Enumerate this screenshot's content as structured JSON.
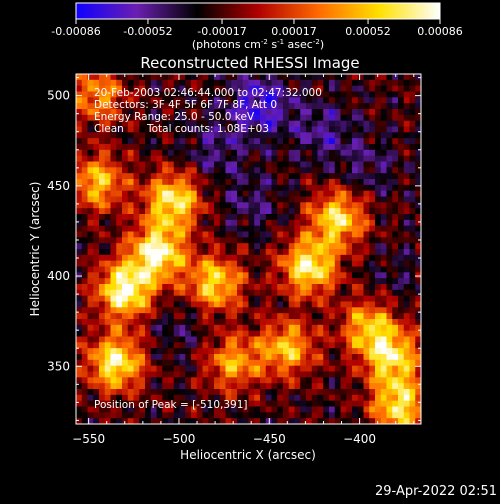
{
  "colorbar": {
    "colors": [
      "#1000ff",
      "#6a1fb0",
      "#000000",
      "#b00000",
      "#ff6a00",
      "#ffe000",
      "#ffffff"
    ],
    "tick_labels": [
      "-0.00086",
      "-0.00052",
      "-0.00017",
      "0.00017",
      "0.00052",
      "0.00086"
    ],
    "tick_values": [
      -0.00086,
      -0.00052,
      -0.00017,
      0.00017,
      0.00052,
      0.00086
    ],
    "range": [
      -0.00086,
      0.00086
    ],
    "unit_label_parts": [
      "(photons cm",
      "-2",
      " s",
      "-1",
      " asec",
      "-2",
      ")"
    ]
  },
  "chart_data": {
    "type": "heatmap",
    "title": "Reconstructed RHESSI Image",
    "xlabel": "Heliocentric X (arcsec)",
    "ylabel": "Heliocentric Y (arcsec)",
    "xlim": [
      -557,
      -366
    ],
    "ylim": [
      318,
      512
    ],
    "x_ticks": [
      -550,
      -500,
      -450,
      -400
    ],
    "y_ticks": [
      350,
      400,
      450,
      500
    ],
    "x_tick_labels": [
      "−550",
      "−500",
      "−450",
      "−400"
    ],
    "y_tick_labels": [
      "350",
      "400",
      "450",
      "500"
    ],
    "peak": [
      -510,
      391
    ],
    "hotspots": [
      {
        "x": -530,
        "y": 392,
        "level": 0.95
      },
      {
        "x": -535,
        "y": 352,
        "level": 0.85
      },
      {
        "x": -512,
        "y": 413,
        "level": 0.9
      },
      {
        "x": -503,
        "y": 442,
        "level": 0.8
      },
      {
        "x": -480,
        "y": 396,
        "level": 0.7
      },
      {
        "x": -428,
        "y": 405,
        "level": 0.85
      },
      {
        "x": -412,
        "y": 432,
        "level": 0.75
      },
      {
        "x": -395,
        "y": 372,
        "level": 0.55
      },
      {
        "x": -382,
        "y": 355,
        "level": 0.7
      },
      {
        "x": -545,
        "y": 452,
        "level": 0.6
      },
      {
        "x": -470,
        "y": 352,
        "level": 0.5
      },
      {
        "x": -440,
        "y": 360,
        "level": 0.6
      },
      {
        "x": -378,
        "y": 328,
        "level": 0.75
      },
      {
        "x": -545,
        "y": 500,
        "level": 0.45
      }
    ],
    "coldspots": [
      {
        "x": -455,
        "y": 495,
        "level": -0.85
      },
      {
        "x": -420,
        "y": 480,
        "level": -0.6
      },
      {
        "x": -480,
        "y": 470,
        "level": -0.55
      },
      {
        "x": -395,
        "y": 460,
        "level": -0.5
      },
      {
        "x": -460,
        "y": 440,
        "level": -0.5
      },
      {
        "x": -500,
        "y": 370,
        "level": -0.45
      },
      {
        "x": -380,
        "y": 400,
        "level": -0.4
      }
    ]
  },
  "info": {
    "time_range": "20-Feb-2003 02:46:44.000 to 02:47:32.000",
    "detectors": "Detectors: 3F 4F 5F 6F 7F 8F, Att 0",
    "energy_range": "Energy Range: 25.0 - 50.0 keV",
    "method": "Clean",
    "total_counts": "Total counts: 1.08E+03",
    "peak_position": "Position of Peak = [-510,391]"
  },
  "footer": {
    "timestamp": "29-Apr-2022 02:51"
  }
}
